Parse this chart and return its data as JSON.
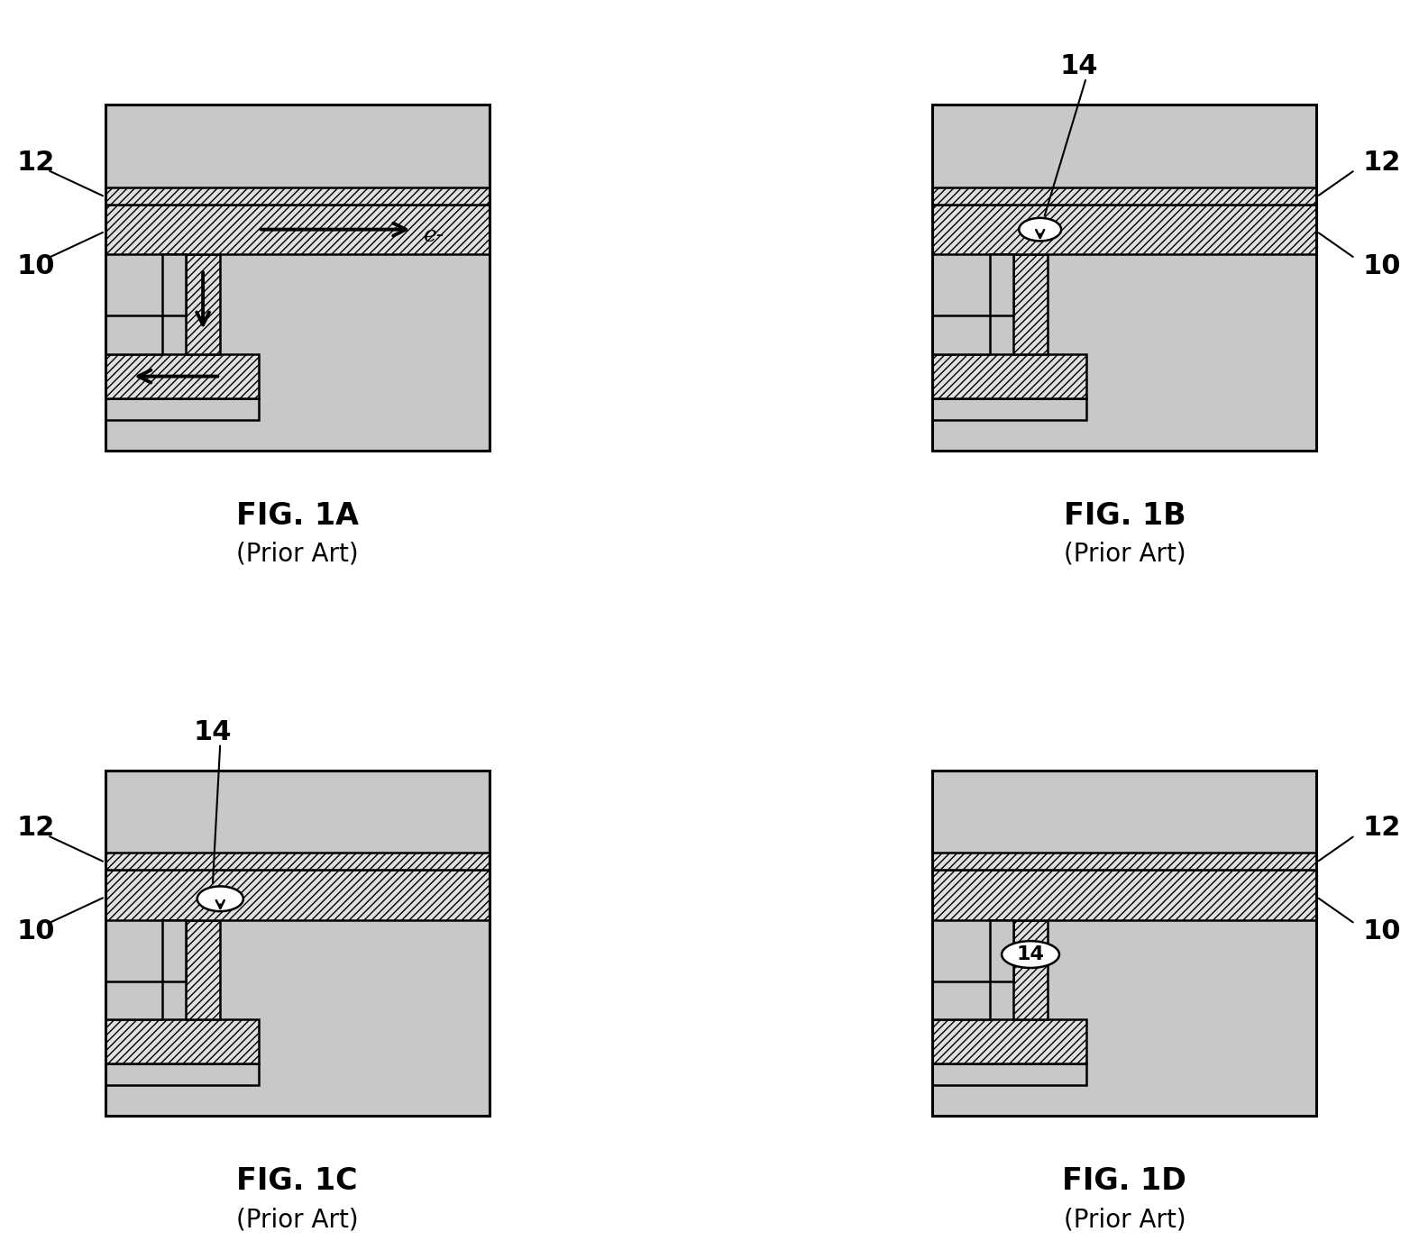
{
  "bg_color": "#ffffff",
  "stipple_color": "#c8c8c8",
  "hatch_fc": "#e0e0e0",
  "hatch_pattern": "////",
  "lw_main": 1.8,
  "lw_border": 2.2,
  "fig_titles": [
    "FIG. 1A",
    "FIG. 1B",
    "FIG. 1C",
    "FIG. 1D"
  ],
  "fig_subtitle": "(Prior Art)",
  "label_fontsize": 22,
  "title_fontsize": 24,
  "subtitle_fontsize": 20,
  "note": "Each diagram: stippled dielectric, hatched metal (trench+via+lower wire). Left side has L-shaped dual-damascene via structure."
}
